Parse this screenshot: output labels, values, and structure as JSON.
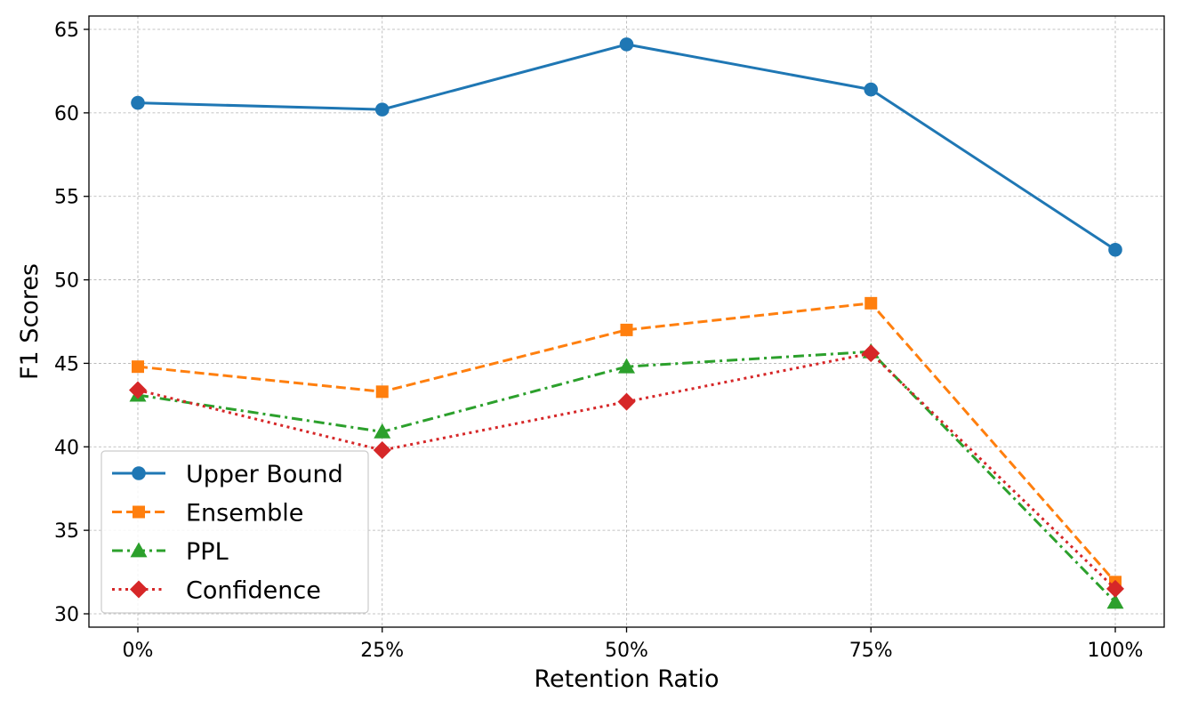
{
  "chart_data": {
    "type": "line",
    "xlabel": "Retention Ratio",
    "ylabel": "F1 Scores",
    "categories": [
      "0%",
      "25%",
      "50%",
      "75%",
      "100%"
    ],
    "ylim": [
      29.2,
      65.8
    ],
    "yticks": [
      30,
      35,
      40,
      45,
      50,
      55,
      60,
      65
    ],
    "grid": true,
    "legend_position": "lower-left",
    "series": [
      {
        "name": "Upper Bound",
        "values": [
          60.6,
          60.2,
          64.1,
          61.4,
          51.8
        ],
        "color": "#1f77b4",
        "marker": "circle",
        "linestyle": "solid"
      },
      {
        "name": "Ensemble",
        "values": [
          44.8,
          43.3,
          47.0,
          48.6,
          31.9
        ],
        "color": "#ff7f0e",
        "marker": "square",
        "linestyle": "dashed"
      },
      {
        "name": "PPL",
        "values": [
          43.1,
          40.9,
          44.8,
          45.7,
          30.7
        ],
        "color": "#2ca02c",
        "marker": "triangle",
        "linestyle": "dashdot"
      },
      {
        "name": "Confidence",
        "values": [
          43.4,
          39.8,
          42.7,
          45.6,
          31.5
        ],
        "color": "#d62728",
        "marker": "diamond",
        "linestyle": "dotted"
      }
    ]
  }
}
